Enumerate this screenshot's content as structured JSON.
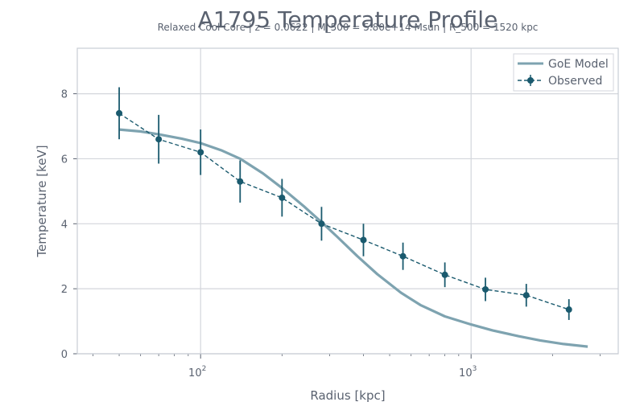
{
  "chart_data": {
    "type": "line",
    "title": "A1795 Temperature Profile",
    "subtitle": "Relaxed Cool Core | z = 0.0622 | M_500 = 5.80e+14 Msun | R_500 = 1520 kpc",
    "xlabel": "Radius [kpc]",
    "ylabel": "Temperature [keV]",
    "x_scale": "log",
    "xlim": [
      35,
      3500
    ],
    "ylim": [
      0,
      9.4
    ],
    "x_ticks": [
      {
        "value": 100,
        "base": "10",
        "exp": "2"
      },
      {
        "value": 1000,
        "base": "10",
        "exp": "3"
      }
    ],
    "y_ticks": [
      {
        "value": 0,
        "label": "0"
      },
      {
        "value": 2,
        "label": "2"
      },
      {
        "value": 4,
        "label": "4"
      },
      {
        "value": 6,
        "label": "6"
      },
      {
        "value": 8,
        "label": "8"
      }
    ],
    "grid": true,
    "legend_position": "top-right",
    "series": [
      {
        "name": "GoE Model",
        "style": "solid",
        "color": "#7ea3b0",
        "x": [
          50,
          60,
          70,
          85,
          100,
          120,
          140,
          170,
          200,
          240,
          280,
          320,
          380,
          450,
          550,
          650,
          800,
          1000,
          1200,
          1500,
          1800,
          2200,
          2700
        ],
        "y": [
          6.9,
          6.84,
          6.75,
          6.62,
          6.48,
          6.25,
          6.0,
          5.55,
          5.1,
          4.55,
          4.05,
          3.6,
          3.0,
          2.45,
          1.88,
          1.5,
          1.15,
          0.9,
          0.72,
          0.54,
          0.41,
          0.3,
          0.22
        ]
      },
      {
        "name": "Observed",
        "style": "dashed",
        "color": "#1a5a6e",
        "x": [
          50,
          70,
          100,
          140,
          200,
          280,
          400,
          560,
          800,
          1130,
          1600,
          2300
        ],
        "y": [
          7.4,
          6.6,
          6.2,
          5.3,
          4.8,
          4.0,
          3.5,
          3.0,
          2.43,
          1.98,
          1.8,
          1.36
        ],
        "yerr": [
          0.8,
          0.75,
          0.7,
          0.65,
          0.58,
          0.52,
          0.5,
          0.42,
          0.38,
          0.36,
          0.35,
          0.32
        ]
      }
    ]
  }
}
